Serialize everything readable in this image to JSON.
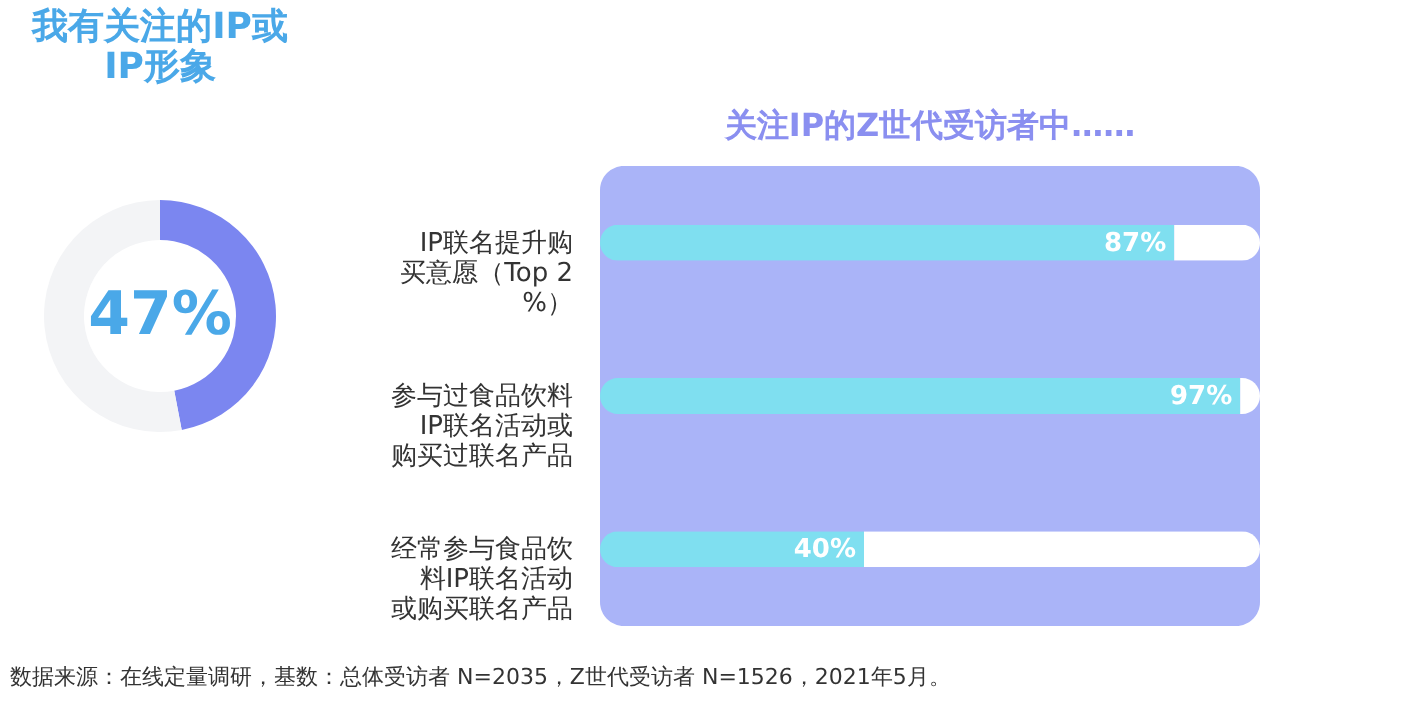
{
  "chart_data": [
    {
      "type": "donut",
      "title": "我有关注的IP或\nIP形象",
      "categories": [
        null,
        null
      ],
      "values": [
        47,
        53
      ],
      "colors": [
        "#7b86f0",
        "#f3f4f6"
      ],
      "value_labels": [
        "47%",
        null
      ],
      "legend": false
    },
    {
      "type": "bar",
      "orientation": "horizontal",
      "stacked": true,
      "title": "关注IP的Z世代受访者中……",
      "categories": [
        "IP联名提升购买意愿（Top 2 %）",
        "参与过食品饮料IP联名活动或购买过联名产品",
        "经常参与食品饮料IP联名活动或购买联名产品"
      ],
      "series": [
        {
          "color": "#7fdff0",
          "values": [
            87,
            97,
            40
          ],
          "value_labels": [
            "87%",
            "97%",
            "40%"
          ]
        },
        {
          "color": "#ffffff",
          "values": [
            13,
            3,
            60
          ]
        }
      ],
      "xlim": [
        0,
        100
      ],
      "tick_labels": false,
      "grid": false,
      "legend": false,
      "annotations": [
        "数据来源：在线定量调研，基数：总体受访者 N=2035，Z世代受访者 N=1526，2021年5月。"
      ]
    }
  ]
}
